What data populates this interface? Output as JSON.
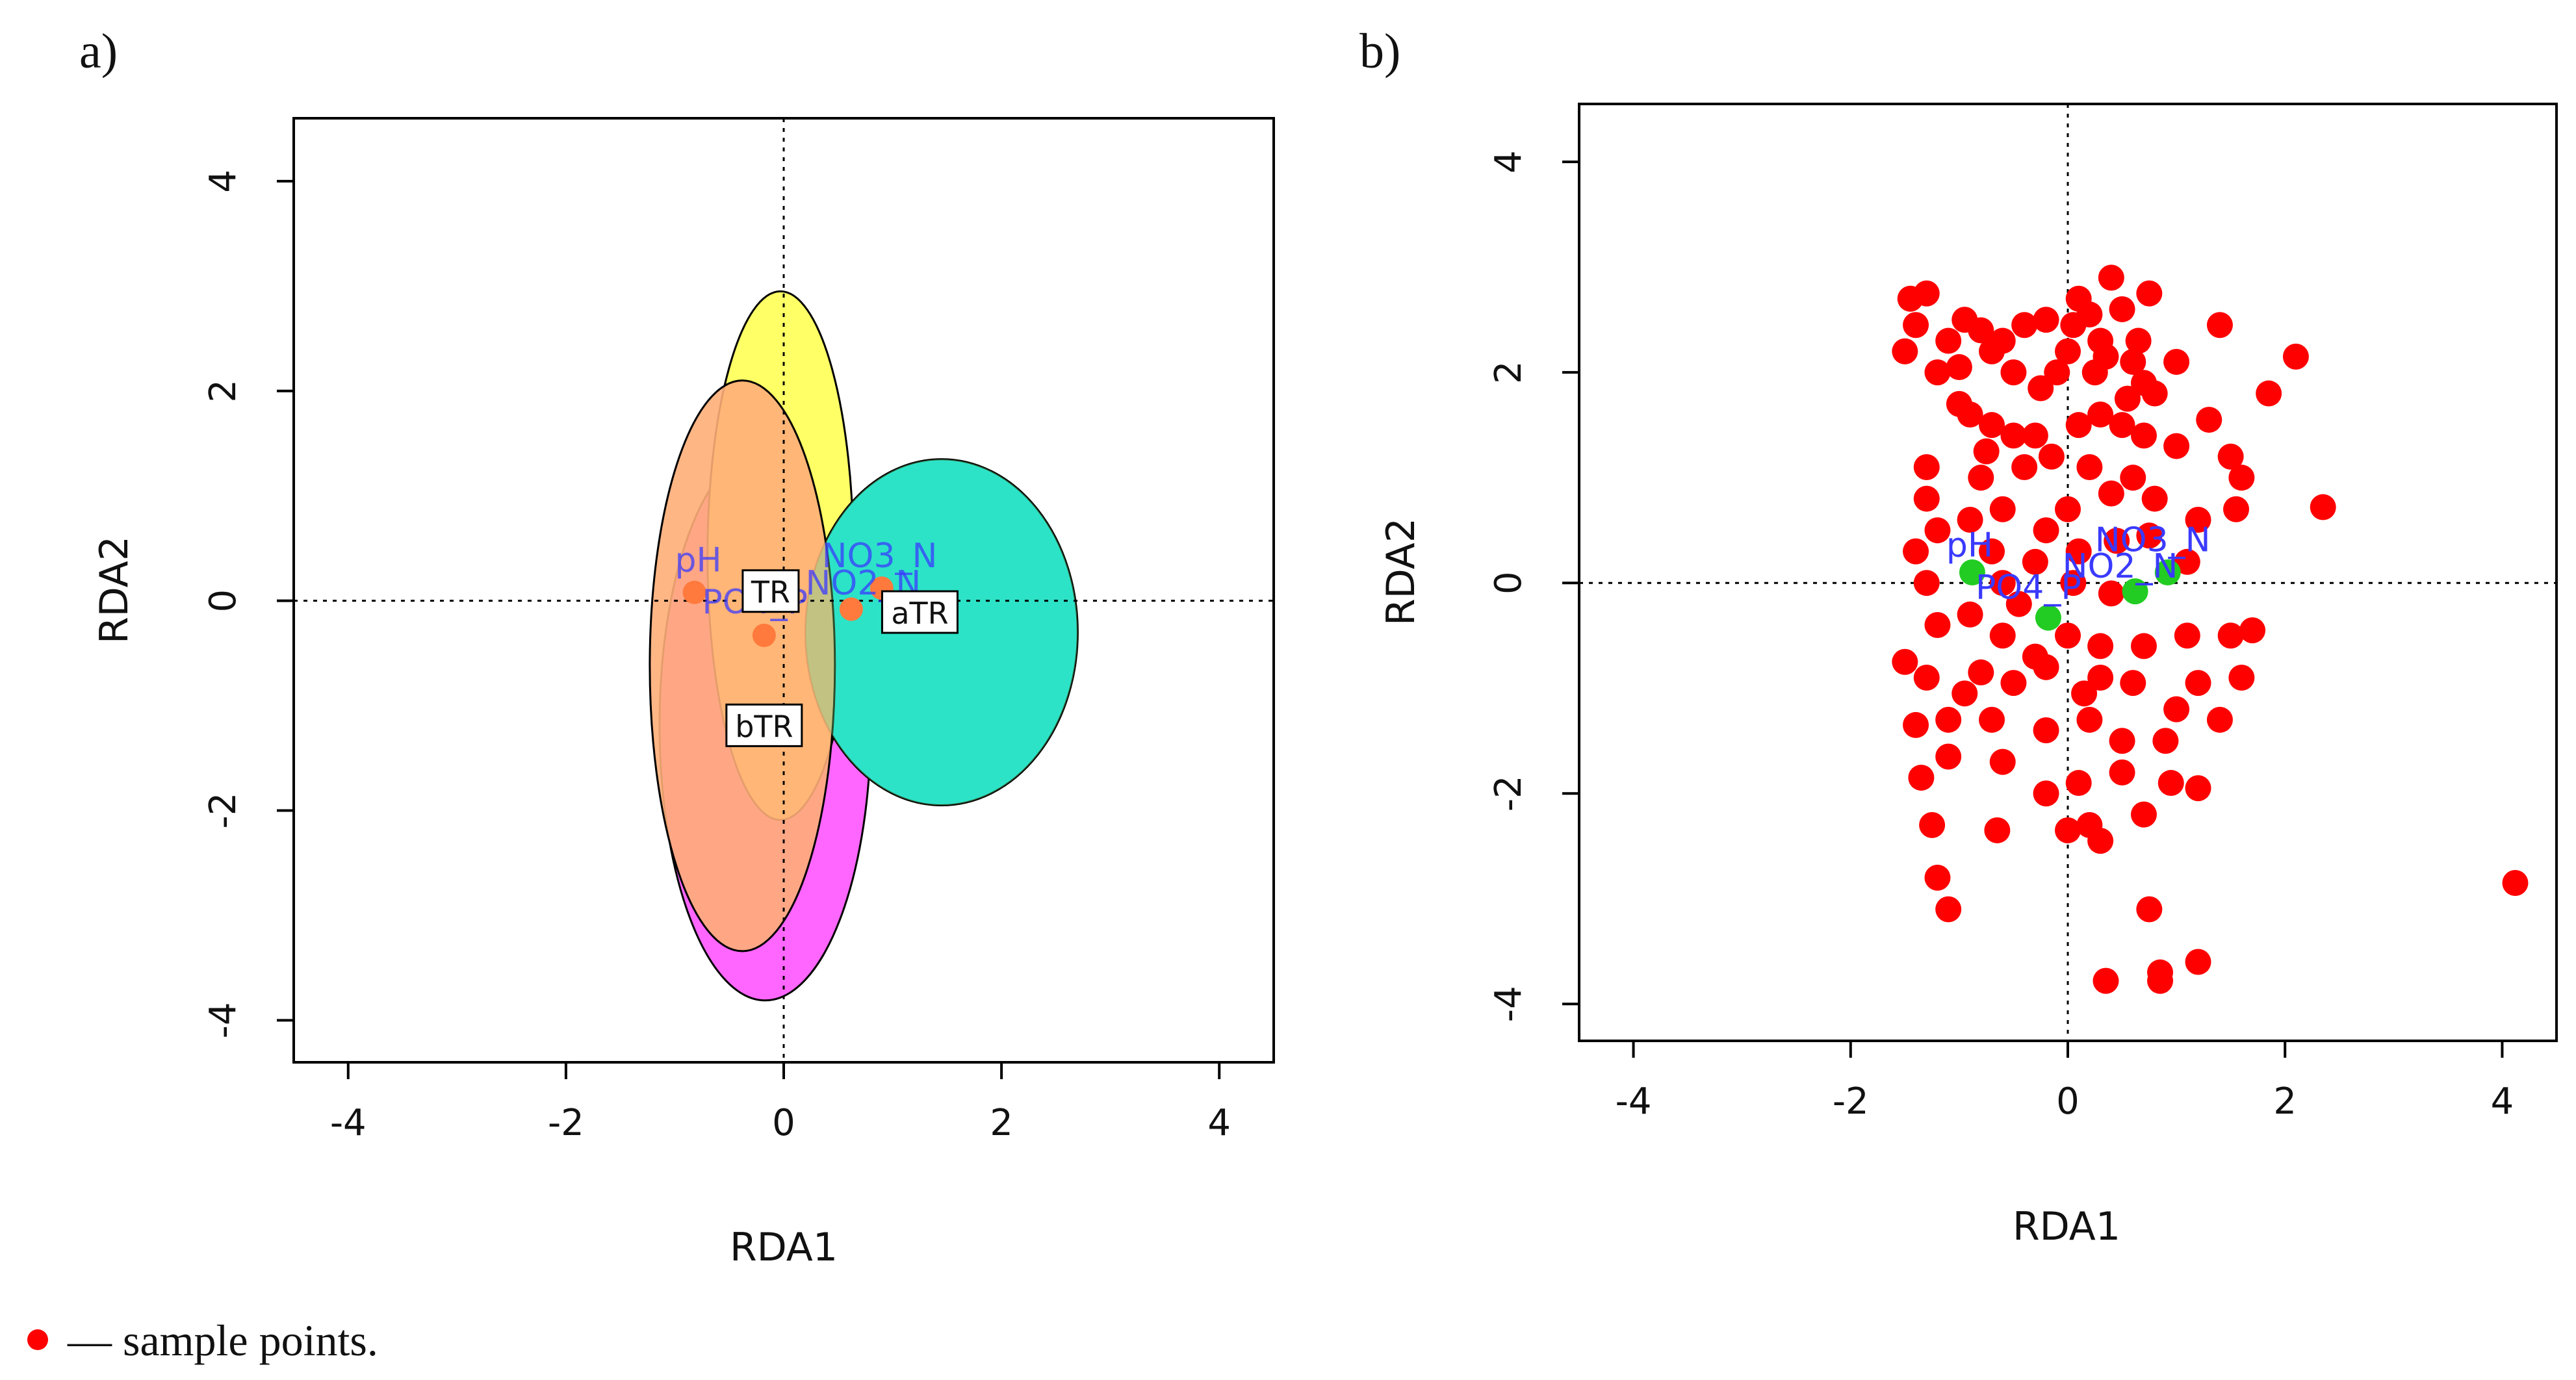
{
  "figure": {
    "caption": "— sample points.",
    "colors": {
      "sample": "#ff0000",
      "env_arrow_a": "#ff7a3c",
      "env_arrow_b": "#22cc22",
      "env_label": "#3a3aff"
    }
  },
  "chart_data": [
    {
      "panel": "a)",
      "type": "scatter",
      "xlabel": "RDA1",
      "ylabel": "RDA2",
      "xlim": [
        -4.5,
        4.5
      ],
      "ylim": [
        -4.4,
        4.6
      ],
      "xticks": [
        -4,
        -2,
        0,
        2,
        4
      ],
      "yticks": [
        -4,
        -2,
        0,
        2,
        4
      ],
      "reference_lines": {
        "x": 0,
        "y": 0
      },
      "ellipses": [
        {
          "group": "bTR",
          "cx": -0.17,
          "cy": -1.18,
          "rx": 0.97,
          "ry": 2.63,
          "color": "#ff66ff"
        },
        {
          "group": "TR",
          "cx": -0.03,
          "cy": 0.43,
          "rx": 0.67,
          "ry": 2.52,
          "color": "#ffff66"
        },
        {
          "group": "aTR",
          "cx": 1.45,
          "cy": -0.3,
          "rx": 1.25,
          "ry": 1.65,
          "color": "#00e5ee"
        },
        {
          "group": "overlap",
          "cx": -0.38,
          "cy": -0.62,
          "rx": 0.85,
          "ry": 2.72,
          "color": "#ffae78"
        }
      ],
      "group_labels": [
        {
          "label": "TR",
          "x": -0.12,
          "y": 0.08
        },
        {
          "label": "aTR",
          "x": 1.25,
          "y": -0.12
        },
        {
          "label": "bTR",
          "x": -0.18,
          "y": -1.2
        }
      ],
      "env_points": [
        {
          "name": "pH",
          "x": -0.82,
          "y": 0.08
        },
        {
          "name": "PO4_P",
          "x": -0.18,
          "y": -0.33
        },
        {
          "name": "NO2_N",
          "x": 0.62,
          "y": -0.08
        },
        {
          "name": "NO3_N",
          "x": 0.9,
          "y": 0.12
        }
      ],
      "env_labels": [
        {
          "text": "pH",
          "x": -1.0,
          "y": 0.28
        },
        {
          "text": "PO4_P",
          "x": -0.75,
          "y": -0.12
        },
        {
          "text": "NO3_N",
          "x": 0.35,
          "y": 0.32
        },
        {
          "text": "NO2_N",
          "x": 0.2,
          "y": 0.06
        }
      ]
    },
    {
      "panel": "b)",
      "type": "scatter",
      "xlabel": "RDA1",
      "ylabel": "RDA2",
      "xlim": [
        -4.5,
        4.5
      ],
      "ylim": [
        -4.35,
        4.55
      ],
      "xticks": [
        -4,
        -2,
        0,
        2,
        4
      ],
      "yticks": [
        -4,
        -2,
        0,
        2,
        4
      ],
      "reference_lines": {
        "x": 0,
        "y": 0
      },
      "env_points": [
        {
          "name": "pH",
          "x": -0.88,
          "y": 0.1
        },
        {
          "name": "PO4_P",
          "x": -0.18,
          "y": -0.33
        },
        {
          "name": "NO2_N",
          "x": 0.62,
          "y": -0.08
        },
        {
          "name": "NO3_N",
          "x": 0.92,
          "y": 0.1
        }
      ],
      "env_labels": [
        {
          "text": "pH",
          "x": -1.12,
          "y": 0.25
        },
        {
          "text": "NO3_N",
          "x": 0.25,
          "y": 0.3
        },
        {
          "text": "NO2_N",
          "x": -0.05,
          "y": 0.05
        },
        {
          "text": "PO4_P",
          "x": -0.85,
          "y": -0.15
        }
      ],
      "samples": [
        [
          -1.5,
          2.2
        ],
        [
          -1.45,
          2.7
        ],
        [
          -1.3,
          2.75
        ],
        [
          -1.4,
          2.45
        ],
        [
          -1.2,
          2.0
        ],
        [
          -1.1,
          2.3
        ],
        [
          -0.95,
          2.5
        ],
        [
          -0.8,
          2.4
        ],
        [
          -0.7,
          2.2
        ],
        [
          -0.6,
          2.3
        ],
        [
          -0.5,
          2.0
        ],
        [
          -0.2,
          2.5
        ],
        [
          -0.1,
          2.0
        ],
        [
          0.0,
          2.2
        ],
        [
          0.05,
          2.45
        ],
        [
          0.1,
          2.7
        ],
        [
          0.2,
          2.55
        ],
        [
          0.3,
          2.3
        ],
        [
          0.4,
          2.9
        ],
        [
          0.5,
          2.6
        ],
        [
          0.6,
          2.1
        ],
        [
          0.7,
          1.9
        ],
        [
          0.75,
          2.75
        ],
        [
          0.8,
          1.8
        ],
        [
          1.0,
          2.1
        ],
        [
          1.4,
          2.45
        ],
        [
          2.1,
          2.15
        ],
        [
          1.85,
          1.8
        ],
        [
          -1.0,
          1.7
        ],
        [
          -0.9,
          1.6
        ],
        [
          -0.7,
          1.5
        ],
        [
          -0.5,
          1.4
        ],
        [
          -0.3,
          1.4
        ],
        [
          0.1,
          1.5
        ],
        [
          0.3,
          1.6
        ],
        [
          0.5,
          1.5
        ],
        [
          0.7,
          1.4
        ],
        [
          -1.3,
          1.1
        ],
        [
          -0.8,
          1.0
        ],
        [
          -0.4,
          1.1
        ],
        [
          0.2,
          1.1
        ],
        [
          0.6,
          1.0
        ],
        [
          1.0,
          1.3
        ],
        [
          1.5,
          1.2
        ],
        [
          1.6,
          1.0
        ],
        [
          1.55,
          0.7
        ],
        [
          2.35,
          0.72
        ],
        [
          -1.3,
          0.8
        ],
        [
          -0.9,
          0.6
        ],
        [
          -0.6,
          0.7
        ],
        [
          -0.2,
          0.5
        ],
        [
          0.0,
          0.7
        ],
        [
          0.4,
          0.85
        ],
        [
          0.8,
          0.8
        ],
        [
          1.2,
          0.6
        ],
        [
          -1.4,
          0.3
        ],
        [
          -1.2,
          0.5
        ],
        [
          -0.7,
          0.3
        ],
        [
          -0.3,
          0.2
        ],
        [
          0.1,
          0.3
        ],
        [
          0.45,
          0.4
        ],
        [
          1.1,
          0.2
        ],
        [
          -1.3,
          0.0
        ],
        [
          -0.6,
          0.0
        ],
        [
          0.05,
          0.0
        ],
        [
          0.4,
          -0.1
        ],
        [
          -1.2,
          -0.4
        ],
        [
          -0.9,
          -0.3
        ],
        [
          -0.6,
          -0.5
        ],
        [
          -0.3,
          -0.7
        ],
        [
          0.0,
          -0.5
        ],
        [
          0.3,
          -0.6
        ],
        [
          0.7,
          -0.6
        ],
        [
          1.1,
          -0.5
        ],
        [
          1.5,
          -0.5
        ],
        [
          1.7,
          -0.45
        ],
        [
          -1.5,
          -0.75
        ],
        [
          -1.3,
          -0.9
        ],
        [
          -0.8,
          -0.85
        ],
        [
          -0.5,
          -0.95
        ],
        [
          -0.2,
          -0.8
        ],
        [
          0.3,
          -0.9
        ],
        [
          0.6,
          -0.95
        ],
        [
          1.2,
          -0.95
        ],
        [
          1.6,
          -0.9
        ],
        [
          -1.4,
          -1.35
        ],
        [
          -1.1,
          -1.3
        ],
        [
          -0.7,
          -1.3
        ],
        [
          -0.2,
          -1.4
        ],
        [
          0.2,
          -1.3
        ],
        [
          0.5,
          -1.5
        ],
        [
          0.9,
          -1.5
        ],
        [
          1.4,
          -1.3
        ],
        [
          -1.35,
          -1.85
        ],
        [
          -1.1,
          -1.65
        ],
        [
          -0.6,
          -1.7
        ],
        [
          0.1,
          -1.9
        ],
        [
          0.5,
          -1.8
        ],
        [
          0.95,
          -1.9
        ],
        [
          1.2,
          -1.95
        ],
        [
          -1.25,
          -2.3
        ],
        [
          -0.65,
          -2.35
        ],
        [
          -0.2,
          -2.0
        ],
        [
          0.2,
          -2.3
        ],
        [
          0.7,
          -2.2
        ],
        [
          -1.2,
          -2.8
        ],
        [
          0.0,
          -2.35
        ],
        [
          0.3,
          -2.45
        ],
        [
          0.75,
          -3.1
        ],
        [
          -1.1,
          -3.1
        ],
        [
          0.85,
          -3.7
        ],
        [
          0.85,
          -3.78
        ],
        [
          0.35,
          -3.78
        ],
        [
          1.2,
          -3.6
        ],
        [
          4.12,
          -2.85
        ],
        [
          -1.0,
          2.05
        ],
        [
          -0.4,
          2.45
        ],
        [
          0.25,
          2.0
        ],
        [
          0.55,
          1.75
        ],
        [
          -0.15,
          1.2
        ],
        [
          0.75,
          0.45
        ],
        [
          -0.45,
          -0.2
        ],
        [
          0.15,
          -1.05
        ],
        [
          -0.95,
          -1.05
        ],
        [
          1.0,
          -1.2
        ],
        [
          0.35,
          2.15
        ],
        [
          -0.25,
          1.85
        ],
        [
          0.65,
          2.3
        ],
        [
          -0.75,
          1.25
        ],
        [
          1.3,
          1.55
        ]
      ]
    }
  ]
}
